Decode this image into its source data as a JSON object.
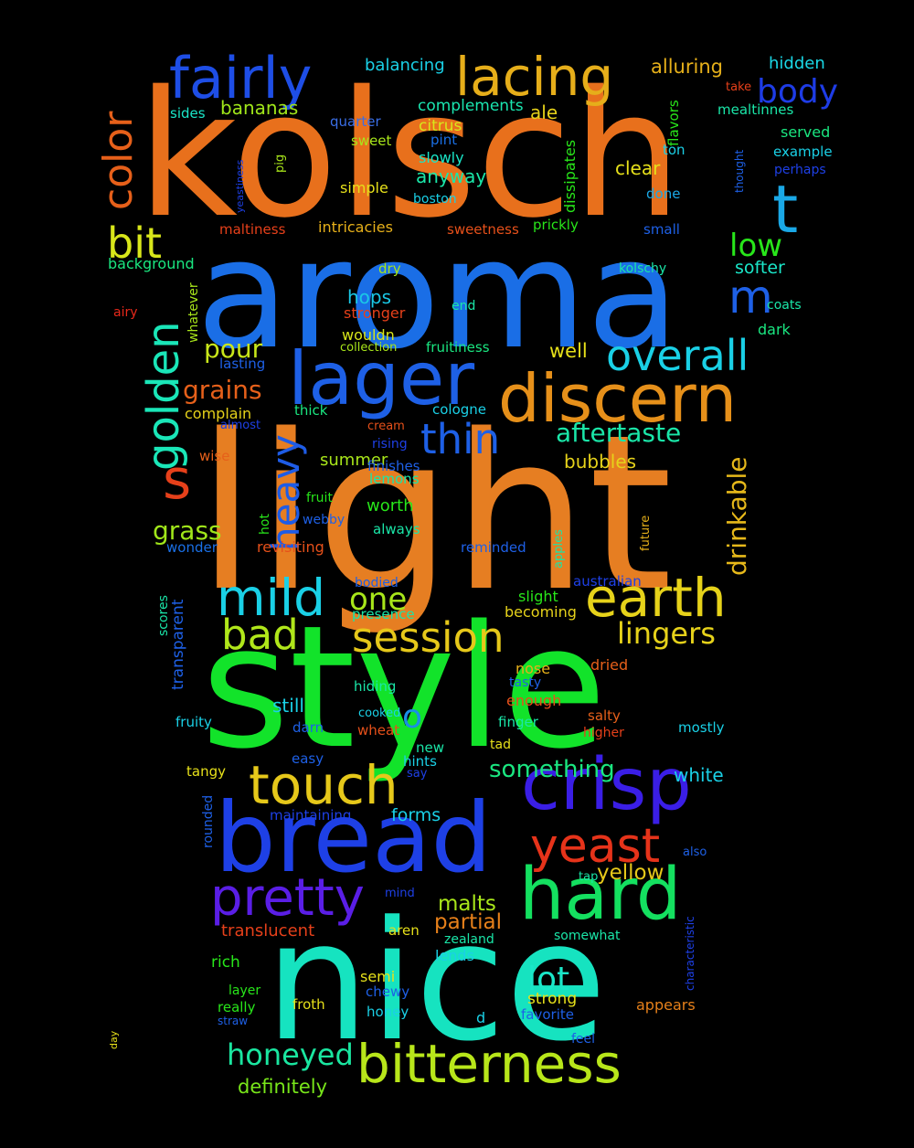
{
  "background": "#000000",
  "words": [
    {
      "text": "kolsch",
      "color": "#e8701c"
    },
    {
      "text": "aroma",
      "color": "#1a6ee6"
    },
    {
      "text": "light",
      "color": "#e67e22"
    },
    {
      "text": "style",
      "color": "#12e32a"
    },
    {
      "text": "nice",
      "color": "#16e3c0"
    },
    {
      "text": "bread",
      "color": "#1e40e6"
    },
    {
      "text": "crisp",
      "color": "#3a1ee6"
    },
    {
      "text": "lager",
      "color": "#1e60e6"
    },
    {
      "text": "discern",
      "color": "#e6901a"
    },
    {
      "text": "hard",
      "color": "#14e060"
    },
    {
      "text": "touch",
      "color": "#e6c81a"
    },
    {
      "text": "earth",
      "color": "#e6d21a"
    },
    {
      "text": "bitterness",
      "color": "#b8e61a"
    },
    {
      "text": "pretty",
      "color": "#5a1ee6"
    },
    {
      "text": "yeast",
      "color": "#e6331a"
    },
    {
      "text": "lacing",
      "color": "#e6ae1a"
    },
    {
      "text": "fairly",
      "color": "#1e4ee6"
    },
    {
      "text": "mild",
      "color": "#1ad0e6"
    },
    {
      "text": "session",
      "color": "#e6c81a"
    },
    {
      "text": "color",
      "color": "#e6601a"
    },
    {
      "text": "golden",
      "color": "#1ae6b8"
    },
    {
      "text": "overall",
      "color": "#1ad0e6"
    },
    {
      "text": "thin",
      "color": "#1e60e6"
    },
    {
      "text": "heavy",
      "color": "#1e5ce6"
    },
    {
      "text": "bad",
      "color": "#b0e61a"
    },
    {
      "text": "honeyed",
      "color": "#1ae6a0"
    },
    {
      "text": "lingers",
      "color": "#e6d21a"
    },
    {
      "text": "aftertaste",
      "color": "#1ae6a8"
    },
    {
      "text": "t",
      "color": "#1aa8e6"
    },
    {
      "text": "s",
      "color": "#e6401a"
    },
    {
      "text": "m",
      "color": "#1e60e6"
    },
    {
      "text": "bit",
      "color": "#d8e61a"
    },
    {
      "text": "body",
      "color": "#1e3ce6"
    },
    {
      "text": "low",
      "color": "#28e61a"
    },
    {
      "text": "drinkable",
      "color": "#e6b81a"
    },
    {
      "text": "one",
      "color": "#a8e61a"
    },
    {
      "text": "lot",
      "color": "#1ae6c8"
    },
    {
      "text": "pour",
      "color": "#c8e61a"
    },
    {
      "text": "grains",
      "color": "#e6601a"
    },
    {
      "text": "grass",
      "color": "#a0e61a"
    },
    {
      "text": "o",
      "color": "#1a8ee6"
    },
    {
      "text": "something",
      "color": "#1ae680"
    },
    {
      "text": "malts",
      "color": "#a8e61a"
    },
    {
      "text": "partial",
      "color": "#e6801a"
    },
    {
      "text": "yellow",
      "color": "#e6c81a"
    },
    {
      "text": "definitely",
      "color": "#78e61a"
    },
    {
      "text": "alluring",
      "color": "#e6b01a"
    },
    {
      "text": "hidden",
      "color": "#1ad8e6"
    },
    {
      "text": "bananas",
      "color": "#a0e61a"
    },
    {
      "text": "balancing",
      "color": "#1ad0e6"
    },
    {
      "text": "complements",
      "color": "#1ae6b0"
    },
    {
      "text": "citrus",
      "color": "#d8e61a"
    },
    {
      "text": "ale",
      "color": "#e6d21a"
    },
    {
      "text": "quarter",
      "color": "#3a6ee6"
    },
    {
      "text": "sides",
      "color": "#1ae6c8"
    },
    {
      "text": "flavors",
      "color": "#28e61a"
    },
    {
      "text": "take",
      "color": "#e6401a"
    },
    {
      "text": "mealtinnes",
      "color": "#1ae6a8"
    },
    {
      "text": "sweet",
      "color": "#a8e61a"
    },
    {
      "text": "pint",
      "color": "#1a70e6"
    },
    {
      "text": "slowly",
      "color": "#1ae6c8"
    },
    {
      "text": "anyway",
      "color": "#1ae6a8"
    },
    {
      "text": "clear",
      "color": "#e6e01a"
    },
    {
      "text": "ton",
      "color": "#1ad0e6"
    },
    {
      "text": "served",
      "color": "#1ae680"
    },
    {
      "text": "example",
      "color": "#1ad0e6"
    },
    {
      "text": "perhaps",
      "color": "#1e40e6"
    },
    {
      "text": "thought",
      "color": "#1e60e6"
    },
    {
      "text": "yeastiness",
      "color": "#1e40e6"
    },
    {
      "text": "pig",
      "color": "#a8e61a"
    },
    {
      "text": "dissipates",
      "color": "#28e61a"
    },
    {
      "text": "simple",
      "color": "#e6e01a"
    },
    {
      "text": "boston",
      "color": "#1ad0e6"
    },
    {
      "text": "done",
      "color": "#1aa8e6"
    },
    {
      "text": "maltiness",
      "color": "#e6401a"
    },
    {
      "text": "intricacies",
      "color": "#e6b01a"
    },
    {
      "text": "sweetness",
      "color": "#e6501a"
    },
    {
      "text": "prickly",
      "color": "#28e61a"
    },
    {
      "text": "small",
      "color": "#1e60e6"
    },
    {
      "text": "background",
      "color": "#1ae680"
    },
    {
      "text": "dry",
      "color": "#a8e61a"
    },
    {
      "text": "kolschy",
      "color": "#1ae6a8"
    },
    {
      "text": "softer",
      "color": "#1ae6c8"
    },
    {
      "text": "airy",
      "color": "#e6281a"
    },
    {
      "text": "whatever",
      "color": "#a8e61a"
    },
    {
      "text": "stronger",
      "color": "#e6401a"
    },
    {
      "text": "end",
      "color": "#1ae6a8"
    },
    {
      "text": "coats",
      "color": "#1ae6a8"
    },
    {
      "text": "hops",
      "color": "#1ac8e6"
    },
    {
      "text": "wouldn",
      "color": "#d8e61a"
    },
    {
      "text": "dark",
      "color": "#1ae680"
    },
    {
      "text": "collection",
      "color": "#a8e61a"
    },
    {
      "text": "fruitiness",
      "color": "#1ae680"
    },
    {
      "text": "well",
      "color": "#e6e01a"
    },
    {
      "text": "lasting",
      "color": "#1e60e6"
    },
    {
      "text": "complain",
      "color": "#e6d21a"
    },
    {
      "text": "thick",
      "color": "#1ae680"
    },
    {
      "text": "cologne",
      "color": "#1ad0e6"
    },
    {
      "text": "almost",
      "color": "#1e40e6"
    },
    {
      "text": "cream",
      "color": "#e6501a"
    },
    {
      "text": "rising",
      "color": "#1e40e6"
    },
    {
      "text": "wise",
      "color": "#e6601a"
    },
    {
      "text": "summer",
      "color": "#a8e61a"
    },
    {
      "text": "finishes",
      "color": "#1e60e6"
    },
    {
      "text": "bubbles",
      "color": "#e6d21a"
    },
    {
      "text": "lemons",
      "color": "#1ae6a8"
    },
    {
      "text": "fruit",
      "color": "#28e61a"
    },
    {
      "text": "worth",
      "color": "#28e61a"
    },
    {
      "text": "hot",
      "color": "#28e61a"
    },
    {
      "text": "webby",
      "color": "#1e60e6"
    },
    {
      "text": "always",
      "color": "#1ae6a8"
    },
    {
      "text": "future",
      "color": "#e6b01a"
    },
    {
      "text": "apples",
      "color": "#1ae6a8"
    },
    {
      "text": "wonder",
      "color": "#1a70e6"
    },
    {
      "text": "revisiting",
      "color": "#e6501a"
    },
    {
      "text": "reminded",
      "color": "#1e60e6"
    },
    {
      "text": "bodied",
      "color": "#1e60e6"
    },
    {
      "text": "australian",
      "color": "#1e40e6"
    },
    {
      "text": "slight",
      "color": "#28e61a"
    },
    {
      "text": "presence",
      "color": "#1ae6a8"
    },
    {
      "text": "becoming",
      "color": "#e6d21a"
    },
    {
      "text": "scores",
      "color": "#1ae6a8"
    },
    {
      "text": "transparent",
      "color": "#1e60e6"
    },
    {
      "text": "dried",
      "color": "#e6601a"
    },
    {
      "text": "nose",
      "color": "#e6b01a"
    },
    {
      "text": "tasty",
      "color": "#1e60e6"
    },
    {
      "text": "hiding",
      "color": "#1ae6a8"
    },
    {
      "text": "enough",
      "color": "#e6501a"
    },
    {
      "text": "still",
      "color": "#1ad0e6"
    },
    {
      "text": "cooked",
      "color": "#1ad0e6"
    },
    {
      "text": "salty",
      "color": "#e6601a"
    },
    {
      "text": "fruity",
      "color": "#1ad0e6"
    },
    {
      "text": "darn",
      "color": "#1e60e6"
    },
    {
      "text": "wheat",
      "color": "#e6501a"
    },
    {
      "text": "finger",
      "color": "#1ae6a8"
    },
    {
      "text": "higher",
      "color": "#e6401a"
    },
    {
      "text": "mostly",
      "color": "#1ad0e6"
    },
    {
      "text": "tad",
      "color": "#e6e01a"
    },
    {
      "text": "new",
      "color": "#1ae6a8"
    },
    {
      "text": "easy",
      "color": "#1e60e6"
    },
    {
      "text": "hints",
      "color": "#1ad0e6"
    },
    {
      "text": "tangy",
      "color": "#e6e01a"
    },
    {
      "text": "say",
      "color": "#1e40e6"
    },
    {
      "text": "white",
      "color": "#1ad0e6"
    },
    {
      "text": "rounded",
      "color": "#1e60e6"
    },
    {
      "text": "maintaining",
      "color": "#1e40e6"
    },
    {
      "text": "forms",
      "color": "#1ad0e6"
    },
    {
      "text": "also",
      "color": "#1e60e6"
    },
    {
      "text": "characteristic",
      "color": "#1e40e6"
    },
    {
      "text": "mind",
      "color": "#1e40e6"
    },
    {
      "text": "tap",
      "color": "#1ae6a8"
    },
    {
      "text": "translucent",
      "color": "#e6401a"
    },
    {
      "text": "aren",
      "color": "#e6e01a"
    },
    {
      "text": "zealand",
      "color": "#1ae6a8"
    },
    {
      "text": "somewhat",
      "color": "#1ae6a8"
    },
    {
      "text": "rich",
      "color": "#28e61a"
    },
    {
      "text": "lends",
      "color": "#1ad0e6"
    },
    {
      "text": "semi",
      "color": "#e6e01a"
    },
    {
      "text": "chewy",
      "color": "#1e60e6"
    },
    {
      "text": "layer",
      "color": "#28e61a"
    },
    {
      "text": "really",
      "color": "#28e61a"
    },
    {
      "text": "froth",
      "color": "#e6e01a"
    },
    {
      "text": "strong",
      "color": "#e6e01a"
    },
    {
      "text": "appears",
      "color": "#e6801a"
    },
    {
      "text": "straw",
      "color": "#1e60e6"
    },
    {
      "text": "honey",
      "color": "#1ad0e6"
    },
    {
      "text": "d",
      "color": "#1ad0e6"
    },
    {
      "text": "favorite",
      "color": "#1e60e6"
    },
    {
      "text": "day",
      "color": "#e6e01a"
    },
    {
      "text": "feel",
      "color": "#1e60e6"
    }
  ]
}
